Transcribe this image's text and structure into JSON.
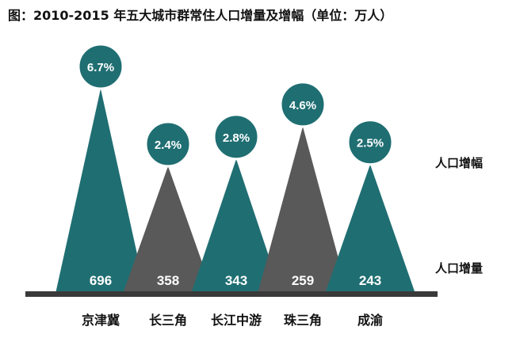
{
  "chart_data": {
    "type": "bar",
    "title": "图：2010-2015 年五大城市群常住人口增量及增幅（单位：万人）",
    "categories": [
      "京津冀",
      "长三角",
      "长江中游",
      "珠三角",
      "成渝"
    ],
    "series": [
      {
        "name": "人口增量",
        "values": [
          696,
          358,
          343,
          259,
          243
        ]
      },
      {
        "name": "人口增幅",
        "values": [
          6.7,
          2.4,
          2.8,
          4.6,
          2.5
        ]
      }
    ],
    "growth_labels": [
      "6.7%",
      "2.4%",
      "2.8%",
      "4.6%",
      "2.5%"
    ],
    "increase_labels": [
      "696",
      "358",
      "343",
      "259",
      "243"
    ],
    "legend": {
      "growth": "人口增幅",
      "increase": "人口增量"
    },
    "colors": [
      "#1f6e72",
      "#595959",
      "#1f6e72",
      "#595959",
      "#1f6e72"
    ],
    "circle_color": "#1f6e72",
    "baseline_color": "#3a3a3a"
  }
}
